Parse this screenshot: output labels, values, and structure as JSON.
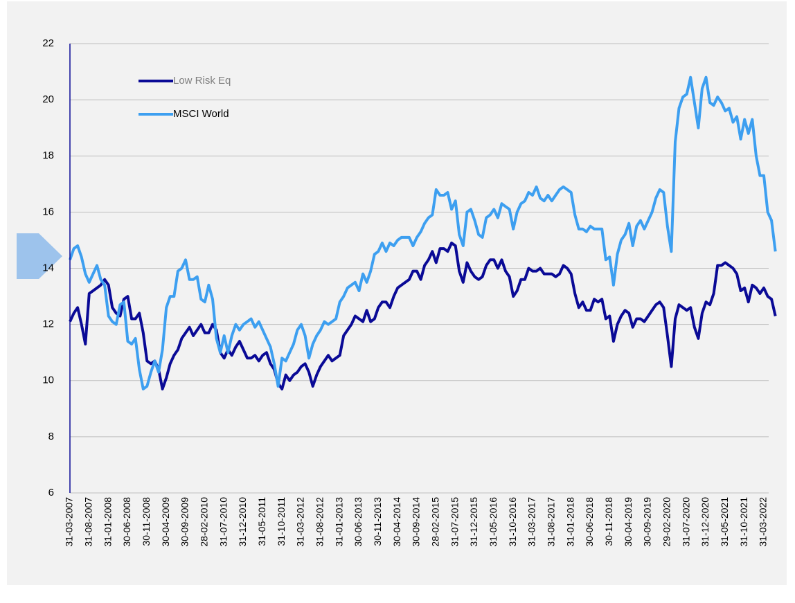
{
  "chart_data": {
    "type": "line",
    "categories": [
      "31-03-2007",
      null,
      null,
      null,
      null,
      "31-08-2007",
      null,
      null,
      null,
      null,
      "31-01-2008",
      null,
      null,
      null,
      null,
      "30-06-2008",
      null,
      null,
      null,
      null,
      "30-11-2008",
      null,
      null,
      null,
      null,
      "30-04-2009",
      null,
      null,
      null,
      null,
      "30-09-2009",
      null,
      null,
      null,
      null,
      "28-02-2010",
      null,
      null,
      null,
      null,
      "31-07-2010",
      null,
      null,
      null,
      null,
      "31-12-2010",
      null,
      null,
      null,
      null,
      "31-05-2011",
      null,
      null,
      null,
      null,
      "31-10-2011",
      null,
      null,
      null,
      null,
      "31-03-2012",
      null,
      null,
      null,
      null,
      "31-08-2012",
      null,
      null,
      null,
      null,
      "31-01-2013",
      null,
      null,
      null,
      null,
      "30-06-2013",
      null,
      null,
      null,
      null,
      "30-11-2013",
      null,
      null,
      null,
      null,
      "30-04-2014",
      null,
      null,
      null,
      null,
      "30-09-2014",
      null,
      null,
      null,
      null,
      "28-02-2015",
      null,
      null,
      null,
      null,
      "31-07-2015",
      null,
      null,
      null,
      null,
      "31-12-2015",
      null,
      null,
      null,
      null,
      "31-05-2016",
      null,
      null,
      null,
      null,
      "31-10-2016",
      null,
      null,
      null,
      null,
      "31-03-2017",
      null,
      null,
      null,
      null,
      "31-08-2017",
      null,
      null,
      null,
      null,
      "31-01-2018",
      null,
      null,
      null,
      null,
      "30-06-2018",
      null,
      null,
      null,
      null,
      "30-11-2018",
      null,
      null,
      null,
      null,
      "30-04-2019",
      null,
      null,
      null,
      null,
      "30-09-2019",
      null,
      null,
      null,
      null,
      "29-02-2020",
      null,
      null,
      null,
      null,
      "31-07-2020",
      null,
      null,
      null,
      null,
      "31-12-2020",
      null,
      null,
      null,
      null,
      "31-05-2021",
      null,
      null,
      null,
      null,
      "31-10-2021",
      null,
      null,
      null,
      null,
      "31-03-2022",
      null,
      null,
      null
    ],
    "series": [
      {
        "name": "Low Risk Eq",
        "color": "#0a0a96",
        "values": [
          12.1,
          12.4,
          12.6,
          12.0,
          11.3,
          13.1,
          13.2,
          13.3,
          13.4,
          13.6,
          13.4,
          12.6,
          12.4,
          12.3,
          12.9,
          13.0,
          12.2,
          12.2,
          12.4,
          11.7,
          10.7,
          10.6,
          10.7,
          10.4,
          9.7,
          10.1,
          10.6,
          10.9,
          11.1,
          11.5,
          11.7,
          11.9,
          11.6,
          11.8,
          12.0,
          11.7,
          11.7,
          12.0,
          11.8,
          11.0,
          10.8,
          11.1,
          10.9,
          11.2,
          11.4,
          11.1,
          10.8,
          10.8,
          10.9,
          10.7,
          10.9,
          11.0,
          10.6,
          10.4,
          9.9,
          9.7,
          10.2,
          10.0,
          10.2,
          10.3,
          10.5,
          10.6,
          10.3,
          9.8,
          10.2,
          10.5,
          10.7,
          10.9,
          10.7,
          10.8,
          10.9,
          11.6,
          11.8,
          12.0,
          12.3,
          12.2,
          12.1,
          12.5,
          12.1,
          12.2,
          12.6,
          12.8,
          12.8,
          12.6,
          13.0,
          13.3,
          13.4,
          13.5,
          13.6,
          13.9,
          13.9,
          13.6,
          14.1,
          14.3,
          14.6,
          14.2,
          14.7,
          14.7,
          14.6,
          14.9,
          14.8,
          13.9,
          13.5,
          14.2,
          13.9,
          13.7,
          13.6,
          13.7,
          14.1,
          14.3,
          14.3,
          14.0,
          14.3,
          13.9,
          13.7,
          13.0,
          13.2,
          13.6,
          13.6,
          14.0,
          13.9,
          13.9,
          14.0,
          13.8,
          13.8,
          13.8,
          13.7,
          13.8,
          14.1,
          14.0,
          13.8,
          13.1,
          12.6,
          12.8,
          12.5,
          12.5,
          12.9,
          12.8,
          12.9,
          12.2,
          12.3,
          11.4,
          12.0,
          12.3,
          12.5,
          12.4,
          11.9,
          12.2,
          12.2,
          12.1,
          12.3,
          12.5,
          12.7,
          12.8,
          12.6,
          11.6,
          10.5,
          12.2,
          12.7,
          12.6,
          12.5,
          12.6,
          11.9,
          11.5,
          12.4,
          12.8,
          12.7,
          13.1,
          14.1,
          14.1,
          14.2,
          14.1,
          14.0,
          13.8,
          13.2,
          13.3,
          12.8,
          13.4,
          13.3,
          13.1,
          13.3,
          13.0,
          12.9,
          12.3
        ]
      },
      {
        "name": "MSCI World",
        "color": "#3d9ff0",
        "values": [
          14.3,
          14.7,
          14.8,
          14.4,
          13.8,
          13.5,
          13.8,
          14.1,
          13.6,
          13.4,
          12.3,
          12.1,
          12.0,
          12.7,
          12.8,
          11.4,
          11.3,
          11.5,
          10.4,
          9.7,
          9.8,
          10.3,
          10.7,
          10.3,
          11.1,
          12.6,
          13.0,
          13.0,
          13.9,
          14.0,
          14.3,
          13.6,
          13.6,
          13.7,
          12.9,
          12.8,
          13.4,
          12.9,
          11.5,
          11.0,
          11.6,
          11.0,
          11.6,
          12.0,
          11.8,
          12.0,
          12.1,
          12.2,
          11.9,
          12.1,
          11.8,
          11.5,
          11.2,
          10.6,
          9.8,
          10.8,
          10.7,
          11.0,
          11.3,
          11.8,
          12.0,
          11.6,
          10.8,
          11.3,
          11.6,
          11.8,
          12.1,
          12.0,
          12.1,
          12.2,
          12.8,
          13.0,
          13.3,
          13.4,
          13.5,
          13.2,
          13.8,
          13.5,
          13.9,
          14.5,
          14.6,
          14.9,
          14.6,
          14.9,
          14.8,
          15.0,
          15.1,
          15.1,
          15.1,
          14.8,
          15.1,
          15.3,
          15.6,
          15.8,
          15.9,
          16.8,
          16.6,
          16.6,
          16.7,
          16.1,
          16.4,
          15.2,
          14.8,
          16.0,
          16.1,
          15.7,
          15.2,
          15.1,
          15.8,
          15.9,
          16.1,
          15.8,
          16.3,
          16.2,
          16.1,
          15.4,
          16.0,
          16.3,
          16.4,
          16.7,
          16.6,
          16.9,
          16.5,
          16.4,
          16.6,
          16.4,
          16.6,
          16.8,
          16.9,
          16.8,
          16.7,
          15.9,
          15.4,
          15.4,
          15.3,
          15.5,
          15.4,
          15.4,
          15.4,
          14.3,
          14.4,
          13.4,
          14.5,
          15.0,
          15.2,
          15.6,
          14.8,
          15.5,
          15.7,
          15.4,
          15.7,
          16.0,
          16.5,
          16.8,
          16.7,
          15.5,
          14.6,
          18.5,
          19.7,
          20.1,
          20.2,
          20.8,
          19.9,
          19.0,
          20.4,
          20.8,
          19.9,
          19.8,
          20.1,
          19.9,
          19.6,
          19.7,
          19.2,
          19.4,
          18.6,
          19.3,
          18.8,
          19.3,
          18.0,
          17.3,
          17.3,
          16.0,
          15.7,
          14.6
        ]
      }
    ],
    "ylim": [
      6,
      22
    ],
    "yticks": [
      6,
      8,
      10,
      12,
      14,
      16,
      18,
      20,
      22
    ],
    "grid": true
  }
}
